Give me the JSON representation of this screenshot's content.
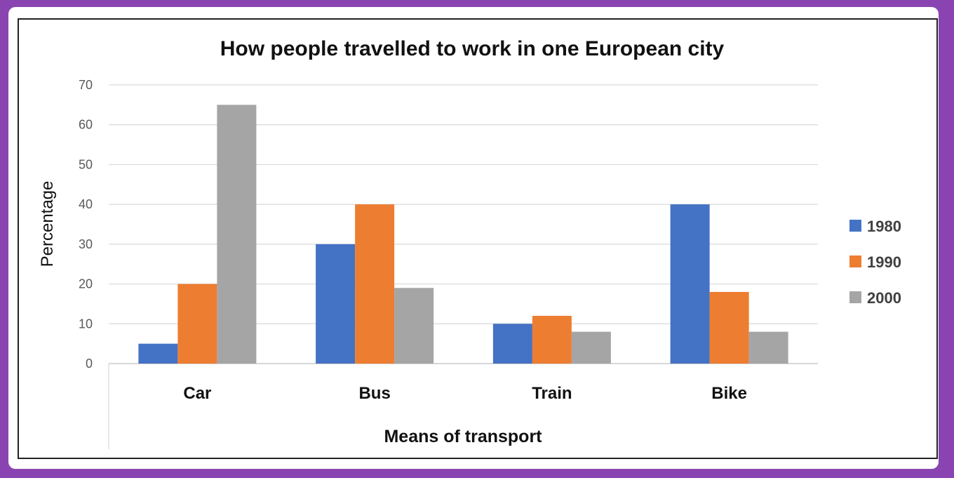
{
  "chart_data": {
    "type": "bar",
    "title": "How people travelled to work in one European city",
    "xlabel": "Means of transport",
    "ylabel": "Percentage",
    "categories": [
      "Car",
      "Bus",
      "Train",
      "Bike"
    ],
    "series": [
      {
        "name": "1980",
        "color": "#4472c4",
        "values": [
          5,
          30,
          10,
          40
        ]
      },
      {
        "name": "1990",
        "color": "#ed7d31",
        "values": [
          20,
          40,
          12,
          18
        ]
      },
      {
        "name": "2000",
        "color": "#a5a5a5",
        "values": [
          65,
          19,
          8,
          8
        ]
      }
    ],
    "ylim": [
      0,
      70
    ],
    "yticks": [
      0,
      10,
      20,
      30,
      40,
      50,
      60,
      70
    ],
    "grid": true,
    "legend_position": "right"
  }
}
